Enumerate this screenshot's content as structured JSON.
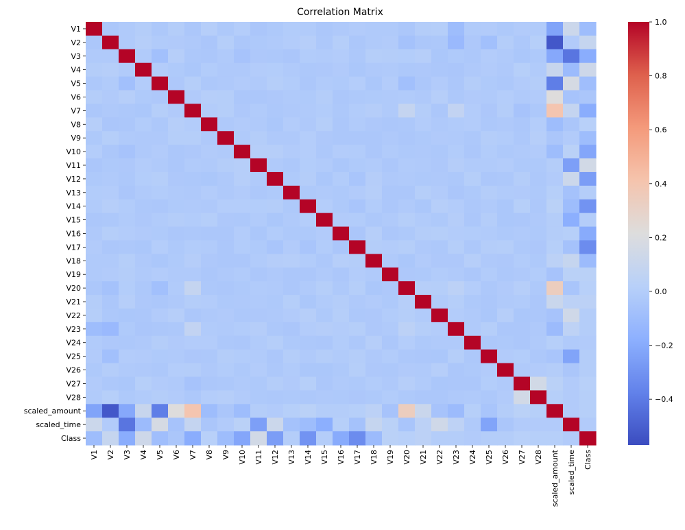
{
  "chart_data": {
    "type": "heatmap",
    "title": "Correlation Matrix",
    "labels": [
      "V1",
      "V2",
      "V3",
      "V4",
      "V5",
      "V6",
      "V7",
      "V8",
      "V9",
      "V10",
      "V11",
      "V12",
      "V13",
      "V14",
      "V15",
      "V16",
      "V17",
      "V18",
      "V19",
      "V20",
      "V21",
      "V22",
      "V23",
      "V24",
      "V25",
      "V26",
      "V27",
      "V28",
      "scaled_amount",
      "scaled_time",
      "Class"
    ],
    "colormap": "coolwarm",
    "vmin": -0.57,
    "vmax": 1.0,
    "colorbar_ticks": [
      "1.0",
      "0.8",
      "0.6",
      "0.4",
      "0.2",
      "0.0",
      "−0.2",
      "−0.4"
    ],
    "colorbar_tick_values": [
      1.0,
      0.8,
      0.6,
      0.4,
      0.2,
      0.0,
      -0.2,
      -0.4
    ],
    "correlations": {
      "scaled_amount": [
        -0.23,
        -0.53,
        -0.21,
        0.1,
        -0.39,
        0.22,
        0.4,
        -0.1,
        -0.04,
        -0.1,
        0.0,
        -0.01,
        0.01,
        0.03,
        -0.0,
        -0.0,
        0.01,
        0.04,
        -0.06,
        0.34,
        0.11,
        -0.06,
        -0.11,
        0.01,
        -0.05,
        -0.0,
        0.03,
        0.01,
        1.0,
        -0.01,
        0.01
      ],
      "scaled_time": [
        0.12,
        -0.01,
        -0.42,
        -0.11,
        0.17,
        -0.06,
        0.08,
        -0.04,
        -0.01,
        0.03,
        -0.25,
        0.12,
        -0.07,
        -0.1,
        -0.18,
        0.01,
        -0.07,
        0.09,
        0.03,
        -0.05,
        0.04,
        0.14,
        0.05,
        -0.02,
        -0.23,
        -0.04,
        -0.01,
        -0.01,
        -0.01,
        1.0,
        -0.01
      ],
      "Class": [
        -0.1,
        0.09,
        -0.19,
        0.13,
        -0.09,
        -0.04,
        -0.19,
        0.02,
        -0.1,
        -0.22,
        0.15,
        -0.26,
        -0.0,
        -0.3,
        -0.0,
        -0.2,
        -0.33,
        -0.11,
        0.03,
        0.02,
        0.04,
        0.0,
        -0.0,
        -0.01,
        0.0,
        0.0,
        0.02,
        0.01,
        0.01,
        -0.01,
        1.0
      ]
    },
    "pairs": [
      {
        "a": "V2",
        "b": "V3",
        "v": -0.02
      },
      {
        "a": "V3",
        "b": "V5",
        "v": -0.08
      },
      {
        "a": "V7",
        "b": "V20",
        "v": 0.08
      },
      {
        "a": "V7",
        "b": "V23",
        "v": 0.07
      },
      {
        "a": "V1",
        "b": "V23",
        "v": -0.1
      },
      {
        "a": "V2",
        "b": "V23",
        "v": -0.12
      },
      {
        "a": "V2",
        "b": "V20",
        "v": -0.07
      },
      {
        "a": "V2",
        "b": "V25",
        "v": -0.08
      },
      {
        "a": "V5",
        "b": "V20",
        "v": -0.08
      },
      {
        "a": "V3",
        "b": "V10",
        "v": -0.06
      },
      {
        "a": "V12",
        "b": "V17",
        "v": -0.05
      },
      {
        "a": "V14",
        "b": "V17",
        "v": -0.05
      },
      {
        "a": "V16",
        "b": "V17",
        "v": -0.04
      },
      {
        "a": "V20",
        "b": "V23",
        "v": 0.04
      },
      {
        "a": "V27",
        "b": "V28",
        "v": 0.15
      },
      {
        "a": "V27",
        "b": "V7",
        "v": -0.06
      }
    ]
  }
}
